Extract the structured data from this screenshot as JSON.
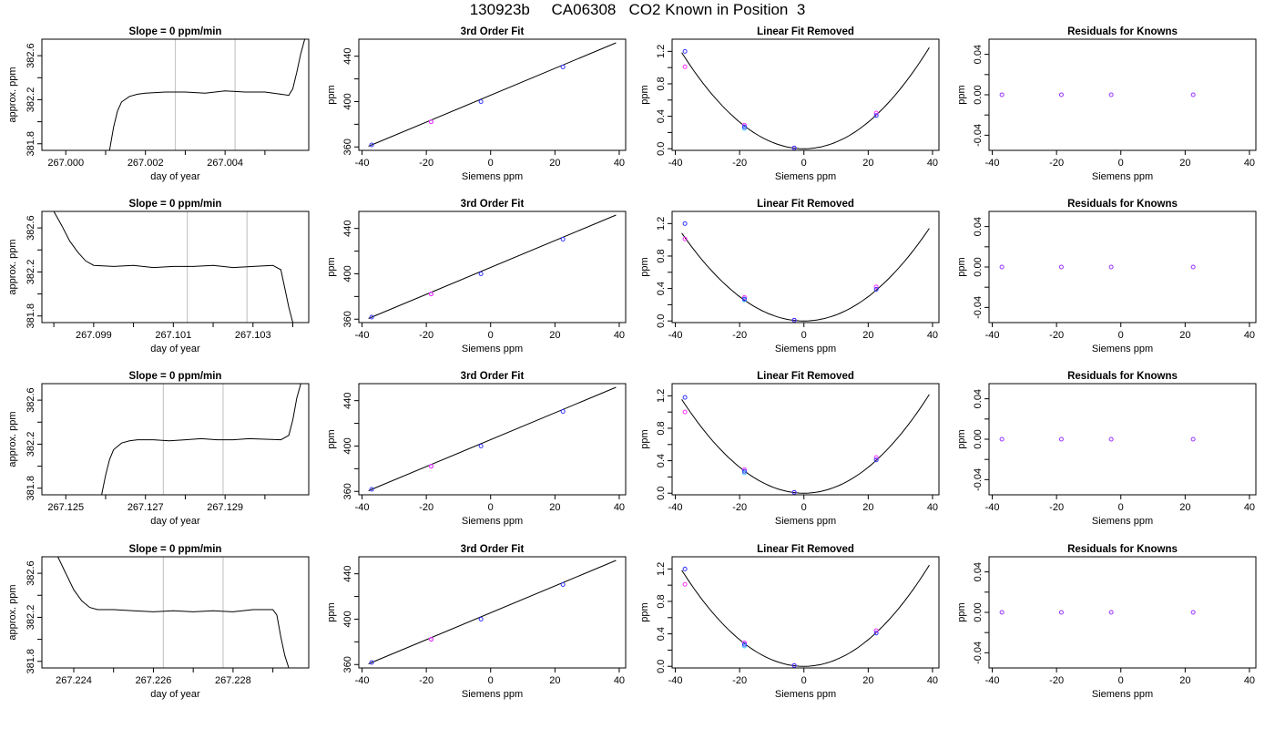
{
  "figure": {
    "title": "130923b     CA06308   CO2 Known in Position  3"
  },
  "colors": {
    "axis": "#000000",
    "trace": "#000000",
    "vline": "#c8c8c8",
    "point_measured": "#3333ff",
    "point_alt1": "#ff33ff",
    "point_alt2": "#33c8ff",
    "point_alt3": "#9933ff"
  },
  "chart_data": [
    {
      "type": "line",
      "title": "Slope =  0  ppm/min",
      "xlabel": "day of year",
      "ylabel": "approx. ppm",
      "xlim": [
        266.9994,
        267.0061
      ],
      "ylim": [
        381.74,
        382.75
      ],
      "xticks": [
        "267.000",
        "267.002",
        "267.004"
      ],
      "xtick_values": [
        267.0,
        267.002,
        267.004
      ],
      "yticks": [
        "381.8",
        "382.2",
        "382.6"
      ],
      "ytick_values": [
        381.8,
        382.2,
        382.6
      ],
      "vlines": [
        267.00275,
        267.00425
      ],
      "trace": {
        "x": [
          267.0011,
          267.0012,
          267.0013,
          267.0014,
          267.0016,
          267.0018,
          267.002,
          267.0025,
          267.003,
          267.0035,
          267.004,
          267.0045,
          267.005,
          267.0054,
          267.0056,
          267.0057,
          267.0058,
          267.0059,
          267.006
        ],
        "y": [
          381.74,
          381.95,
          382.1,
          382.18,
          382.23,
          382.25,
          382.26,
          382.27,
          382.27,
          382.26,
          382.28,
          382.27,
          382.27,
          382.25,
          382.24,
          382.3,
          382.45,
          382.62,
          382.75
        ]
      }
    },
    {
      "type": "scatter",
      "title": "3rd Order Fit",
      "xlabel": "Siemens ppm",
      "ylabel": "ppm",
      "xlim": [
        -41,
        42
      ],
      "ylim": [
        357,
        455
      ],
      "xticks": [
        "-40",
        "-20",
        "0",
        "20",
        "40"
      ],
      "xtick_values": [
        -40,
        -20,
        0,
        20,
        40
      ],
      "yticks": [
        "360",
        "400",
        "440"
      ],
      "ytick_values": [
        360,
        400,
        440
      ],
      "fit_line": {
        "x": [
          -38,
          39
        ],
        "y": [
          360.6,
          451.8
        ]
      },
      "points": {
        "x": [
          -37,
          -18.5,
          -3,
          22.5
        ],
        "y": [
          361.8,
          382.2,
          400.0,
          430.5
        ]
      }
    },
    {
      "type": "scatter",
      "title": "Linear Fit Removed",
      "xlabel": "Siemens ppm",
      "ylabel": "ppm",
      "xlim": [
        -41,
        42
      ],
      "ylim": [
        -0.02,
        1.35
      ],
      "xticks": [
        "-40",
        "-20",
        "0",
        "20",
        "40"
      ],
      "xtick_values": [
        -40,
        -20,
        0,
        20,
        40
      ],
      "yticks": [
        "0.0",
        "0.4",
        "0.8",
        "1.2"
      ],
      "ytick_values": [
        0.0,
        0.4,
        0.8,
        1.2
      ],
      "curve": {
        "vertex_x": 0,
        "vertex_y": 0,
        "a": 0.00082,
        "xmin": -38,
        "xmax": 39
      },
      "points_measured": {
        "x": [
          -37,
          -18.5,
          -3,
          22.5
        ],
        "y": [
          1.2,
          0.27,
          0.01,
          0.41
        ]
      },
      "points_alt1": {
        "x": [
          -37,
          -18.5,
          -3,
          22.5
        ],
        "y": [
          1.01,
          0.29,
          0.01,
          0.44
        ]
      },
      "points_alt2": {
        "x": [
          -18.5
        ],
        "y": [
          0.25
        ]
      }
    },
    {
      "type": "scatter",
      "title": "Residuals for Knowns",
      "xlabel": "Siemens ppm",
      "ylabel": "ppm",
      "xlim": [
        -41,
        42
      ],
      "ylim": [
        -0.055,
        0.055
      ],
      "xticks": [
        "-40",
        "-20",
        "0",
        "20",
        "40"
      ],
      "xtick_values": [
        -40,
        -20,
        0,
        20,
        40
      ],
      "yticks": [
        "-0.04",
        "0.00",
        "0.04"
      ],
      "ytick_values": [
        -0.04,
        0.0,
        0.04
      ],
      "points": {
        "x": [
          -37,
          -18.5,
          -3,
          22.5
        ],
        "y": [
          0,
          0,
          0,
          0
        ]
      }
    },
    {
      "type": "line",
      "title": "Slope =  0  ppm/min",
      "xlabel": "day of year",
      "ylabel": "approx. ppm",
      "xlim": [
        267.0977,
        267.1044
      ],
      "ylim": [
        381.74,
        382.75
      ],
      "xticks": [
        "267.099",
        "267.101",
        "267.103"
      ],
      "xtick_values": [
        267.099,
        267.101,
        267.103
      ],
      "yticks": [
        "381.8",
        "382.2",
        "382.6"
      ],
      "ytick_values": [
        381.8,
        382.2,
        382.6
      ],
      "vlines": [
        267.10135,
        267.10285
      ],
      "trace": {
        "x": [
          267.098,
          267.0982,
          267.0984,
          267.0986,
          267.0988,
          267.099,
          267.0995,
          267.1,
          267.1005,
          267.101,
          267.1015,
          267.102,
          267.1025,
          267.103,
          267.1035,
          267.1037,
          267.1038,
          267.1039,
          267.104
        ],
        "y": [
          382.75,
          382.62,
          382.48,
          382.38,
          382.3,
          382.26,
          382.25,
          382.26,
          382.24,
          382.25,
          382.25,
          382.26,
          382.24,
          382.25,
          382.26,
          382.22,
          382.05,
          381.88,
          381.74
        ]
      }
    },
    {
      "type": "scatter",
      "title": "3rd Order Fit",
      "xlabel": "Siemens ppm",
      "ylabel": "ppm",
      "xlim": [
        -41,
        42
      ],
      "ylim": [
        357,
        455
      ],
      "xticks": [
        "-40",
        "-20",
        "0",
        "20",
        "40"
      ],
      "xtick_values": [
        -40,
        -20,
        0,
        20,
        40
      ],
      "yticks": [
        "360",
        "400",
        "440"
      ],
      "ytick_values": [
        360,
        400,
        440
      ],
      "fit_line": {
        "x": [
          -38,
          39
        ],
        "y": [
          360.6,
          451.8
        ]
      },
      "points": {
        "x": [
          -37,
          -18.5,
          -3,
          22.5
        ],
        "y": [
          361.8,
          382.2,
          400.0,
          430.5
        ]
      }
    },
    {
      "type": "scatter",
      "title": "Linear Fit Removed",
      "xlabel": "Siemens ppm",
      "ylabel": "ppm",
      "xlim": [
        -41,
        42
      ],
      "ylim": [
        -0.02,
        1.35
      ],
      "xticks": [
        "-40",
        "-20",
        "0",
        "20",
        "40"
      ],
      "xtick_values": [
        -40,
        -20,
        0,
        20,
        40
      ],
      "yticks": [
        "0.0",
        "0.4",
        "0.8",
        "1.2"
      ],
      "ytick_values": [
        0.0,
        0.4,
        0.8,
        1.2
      ],
      "curve": {
        "vertex_x": 0,
        "vertex_y": 0,
        "a": 0.00075,
        "xmin": -38,
        "xmax": 39
      },
      "points_measured": {
        "x": [
          -37,
          -18.5,
          -3,
          22.5
        ],
        "y": [
          1.2,
          0.27,
          0.01,
          0.39
        ]
      },
      "points_alt1": {
        "x": [
          -37,
          -18.5,
          -3,
          22.5
        ],
        "y": [
          1.01,
          0.29,
          0.01,
          0.42
        ]
      },
      "points_alt2": {
        "x": [
          -18.5
        ],
        "y": [
          0.26
        ]
      }
    },
    {
      "type": "scatter",
      "title": "Residuals for Knowns",
      "xlabel": "Siemens ppm",
      "ylabel": "ppm",
      "xlim": [
        -41,
        42
      ],
      "ylim": [
        -0.055,
        0.055
      ],
      "xticks": [
        "-40",
        "-20",
        "0",
        "20",
        "40"
      ],
      "xtick_values": [
        -40,
        -20,
        0,
        20,
        40
      ],
      "yticks": [
        "-0.04",
        "0.00",
        "0.04"
      ],
      "ytick_values": [
        -0.04,
        0.0,
        0.04
      ],
      "points": {
        "x": [
          -37,
          -18.5,
          -3,
          22.5
        ],
        "y": [
          0,
          0,
          0,
          0
        ]
      }
    },
    {
      "type": "line",
      "title": "Slope =  0  ppm/min",
      "xlabel": "day of year",
      "ylabel": "approx. ppm",
      "xlim": [
        267.1244,
        267.1311
      ],
      "ylim": [
        381.74,
        382.75
      ],
      "xticks": [
        "267.125",
        "267.127",
        "267.129"
      ],
      "xtick_values": [
        267.125,
        267.127,
        267.129
      ],
      "yticks": [
        "381.8",
        "382.2",
        "382.6"
      ],
      "ytick_values": [
        381.8,
        382.2,
        382.6
      ],
      "vlines": [
        267.12745,
        267.12895
      ],
      "trace": {
        "x": [
          267.1259,
          267.126,
          267.1261,
          267.1262,
          267.1264,
          267.1266,
          267.1268,
          267.1272,
          267.1276,
          267.128,
          267.1284,
          267.1288,
          267.1292,
          267.1296,
          267.1304,
          267.1306,
          267.1307,
          267.1308,
          267.1309
        ],
        "y": [
          381.74,
          381.92,
          382.06,
          382.15,
          382.21,
          382.23,
          382.24,
          382.24,
          382.23,
          382.24,
          382.25,
          382.24,
          382.24,
          382.25,
          382.24,
          382.28,
          382.42,
          382.62,
          382.75
        ]
      }
    },
    {
      "type": "scatter",
      "title": "3rd Order Fit",
      "xlabel": "Siemens ppm",
      "ylabel": "ppm",
      "xlim": [
        -41,
        42
      ],
      "ylim": [
        357,
        455
      ],
      "xticks": [
        "-40",
        "-20",
        "0",
        "20",
        "40"
      ],
      "xtick_values": [
        -40,
        -20,
        0,
        20,
        40
      ],
      "yticks": [
        "360",
        "400",
        "440"
      ],
      "ytick_values": [
        360,
        400,
        440
      ],
      "fit_line": {
        "x": [
          -38,
          39
        ],
        "y": [
          360.6,
          451.8
        ]
      },
      "points": {
        "x": [
          -37,
          -18.5,
          -3,
          22.5
        ],
        "y": [
          361.8,
          382.2,
          400.0,
          430.5
        ]
      }
    },
    {
      "type": "scatter",
      "title": "Linear Fit Removed",
      "xlabel": "Siemens ppm",
      "ylabel": "ppm",
      "xlim": [
        -41,
        42
      ],
      "ylim": [
        -0.02,
        1.35
      ],
      "xticks": [
        "-40",
        "-20",
        "0",
        "20",
        "40"
      ],
      "xtick_values": [
        -40,
        -20,
        0,
        20,
        40
      ],
      "yticks": [
        "0.0",
        "0.4",
        "0.8",
        "1.2"
      ],
      "ytick_values": [
        0.0,
        0.4,
        0.8,
        1.2
      ],
      "curve": {
        "vertex_x": 0,
        "vertex_y": 0,
        "a": 0.0008,
        "xmin": -38,
        "xmax": 39
      },
      "points_measured": {
        "x": [
          -37,
          -18.5,
          -3,
          22.5
        ],
        "y": [
          1.18,
          0.27,
          0.01,
          0.41
        ]
      },
      "points_alt1": {
        "x": [
          -37,
          -18.5,
          -3,
          22.5
        ],
        "y": [
          1.0,
          0.29,
          0.01,
          0.44
        ]
      },
      "points_alt2": {
        "x": [
          -18.5
        ],
        "y": [
          0.25
        ]
      }
    },
    {
      "type": "scatter",
      "title": "Residuals for Knowns",
      "xlabel": "Siemens ppm",
      "ylabel": "ppm",
      "xlim": [
        -41,
        42
      ],
      "ylim": [
        -0.055,
        0.055
      ],
      "xticks": [
        "-40",
        "-20",
        "0",
        "20",
        "40"
      ],
      "xtick_values": [
        -40,
        -20,
        0,
        20,
        40
      ],
      "yticks": [
        "-0.04",
        "0.00",
        "0.04"
      ],
      "ytick_values": [
        -0.04,
        0.0,
        0.04
      ],
      "points": {
        "x": [
          -37,
          -18.5,
          -3,
          22.5
        ],
        "y": [
          0,
          0,
          0,
          0
        ]
      }
    },
    {
      "type": "line",
      "title": "Slope =  0  ppm/min",
      "xlabel": "day of year",
      "ylabel": "approx. ppm",
      "xlim": [
        267.2232,
        267.2299
      ],
      "ylim": [
        381.74,
        382.75
      ],
      "xticks": [
        "267.224",
        "267.226",
        "267.228"
      ],
      "xtick_values": [
        267.224,
        267.226,
        267.228
      ],
      "yticks": [
        "381.8",
        "382.2",
        "382.6"
      ],
      "ytick_values": [
        381.8,
        382.2,
        382.6
      ],
      "vlines": [
        267.22625,
        267.22775
      ],
      "trace": {
        "x": [
          267.2236,
          267.2238,
          267.224,
          267.2242,
          267.2244,
          267.2246,
          267.225,
          267.2255,
          267.226,
          267.2265,
          267.227,
          267.2275,
          267.228,
          267.2285,
          267.229,
          267.2291,
          267.2292,
          267.2293,
          267.2294
        ],
        "y": [
          382.75,
          382.6,
          382.45,
          382.35,
          382.29,
          382.27,
          382.27,
          382.26,
          382.25,
          382.26,
          382.25,
          382.26,
          382.25,
          382.27,
          382.27,
          382.22,
          382.02,
          381.85,
          381.74
        ]
      }
    },
    {
      "type": "scatter",
      "title": "3rd Order Fit",
      "xlabel": "Siemens ppm",
      "ylabel": "ppm",
      "xlim": [
        -41,
        42
      ],
      "ylim": [
        357,
        455
      ],
      "xticks": [
        "-40",
        "-20",
        "0",
        "20",
        "40"
      ],
      "xtick_values": [
        -40,
        -20,
        0,
        20,
        40
      ],
      "yticks": [
        "360",
        "400",
        "440"
      ],
      "ytick_values": [
        360,
        400,
        440
      ],
      "fit_line": {
        "x": [
          -38,
          39
        ],
        "y": [
          360.6,
          451.8
        ]
      },
      "points": {
        "x": [
          -37,
          -18.5,
          -3,
          22.5
        ],
        "y": [
          361.8,
          382.2,
          400.0,
          430.5
        ]
      }
    },
    {
      "type": "scatter",
      "title": "Linear Fit Removed",
      "xlabel": "Siemens ppm",
      "ylabel": "ppm",
      "xlim": [
        -41,
        42
      ],
      "ylim": [
        -0.02,
        1.35
      ],
      "xticks": [
        "-40",
        "-20",
        "0",
        "20",
        "40"
      ],
      "xtick_values": [
        -40,
        -20,
        0,
        20,
        40
      ],
      "yticks": [
        "0.0",
        "0.4",
        "0.8",
        "1.2"
      ],
      "ytick_values": [
        0.0,
        0.4,
        0.8,
        1.2
      ],
      "curve": {
        "vertex_x": 0,
        "vertex_y": 0,
        "a": 0.00082,
        "xmin": -38,
        "xmax": 39
      },
      "points_measured": {
        "x": [
          -37,
          -18.5,
          -3,
          22.5
        ],
        "y": [
          1.2,
          0.27,
          0.01,
          0.41
        ]
      },
      "points_alt1": {
        "x": [
          -37,
          -18.5,
          -3,
          22.5
        ],
        "y": [
          1.01,
          0.29,
          0.01,
          0.44
        ]
      },
      "points_alt2": {
        "x": [
          -18.5
        ],
        "y": [
          0.25
        ]
      }
    },
    {
      "type": "scatter",
      "title": "Residuals for Knowns",
      "xlabel": "Siemens ppm",
      "ylabel": "ppm",
      "xlim": [
        -41,
        42
      ],
      "ylim": [
        -0.055,
        0.055
      ],
      "xticks": [
        "-40",
        "-20",
        "0",
        "20",
        "40"
      ],
      "xtick_values": [
        -40,
        -20,
        0,
        20,
        40
      ],
      "yticks": [
        "-0.04",
        "0.00",
        "0.04"
      ],
      "ytick_values": [
        -0.04,
        0.0,
        0.04
      ],
      "points": {
        "x": [
          -37,
          -18.5,
          -3,
          22.5
        ],
        "y": [
          0,
          0,
          0,
          0
        ]
      }
    }
  ]
}
